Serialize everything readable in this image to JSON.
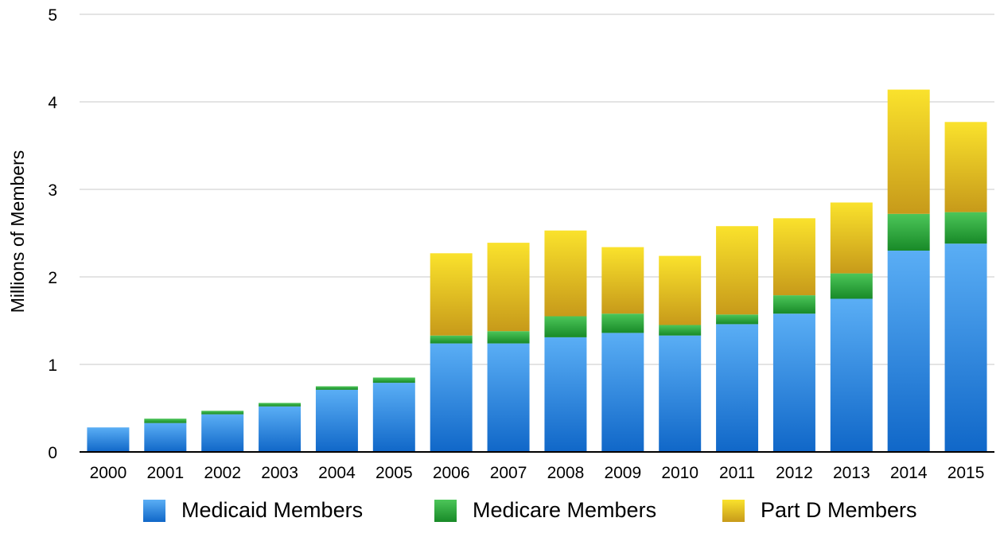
{
  "chart_data": {
    "type": "bar",
    "stacked": true,
    "title": "",
    "xlabel": "",
    "ylabel": "Millions of Members",
    "ylim": [
      0,
      5
    ],
    "yticks": [
      0,
      1,
      2,
      3,
      4,
      5
    ],
    "grid": true,
    "legend_position": "bottom",
    "categories": [
      "2000",
      "2001",
      "2002",
      "2003",
      "2004",
      "2005",
      "2006",
      "2007",
      "2008",
      "2009",
      "2010",
      "2011",
      "2012",
      "2013",
      "2014",
      "2015"
    ],
    "series": [
      {
        "name": "Medicaid Members",
        "color": "#2f86e0",
        "values": [
          0.28,
          0.33,
          0.43,
          0.52,
          0.71,
          0.79,
          1.24,
          1.24,
          1.31,
          1.36,
          1.33,
          1.46,
          1.58,
          1.75,
          2.3,
          2.38
        ]
      },
      {
        "name": "Medicare Members",
        "color": "#2eaa3c",
        "values": [
          0.0,
          0.05,
          0.04,
          0.04,
          0.04,
          0.06,
          0.09,
          0.14,
          0.24,
          0.22,
          0.12,
          0.11,
          0.21,
          0.29,
          0.42,
          0.36
        ]
      },
      {
        "name": "Part D Members",
        "color": "#f0d020",
        "values": [
          0.0,
          0.0,
          0.0,
          0.0,
          0.0,
          0.0,
          0.94,
          1.01,
          0.98,
          0.76,
          0.79,
          1.01,
          0.88,
          0.81,
          1.42,
          1.03
        ]
      }
    ]
  }
}
